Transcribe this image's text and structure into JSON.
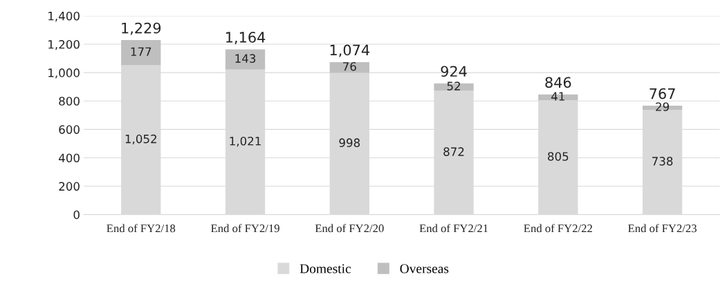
{
  "chart_data": {
    "type": "bar",
    "stacked": true,
    "categories": [
      "End of FY2/18",
      "End of FY2/19",
      "End of FY2/20",
      "End of FY2/21",
      "End of FY2/22",
      "End of FY2/23"
    ],
    "series": [
      {
        "name": "Domestic",
        "color": "#d9d9d9",
        "values": [
          1052,
          1021,
          998,
          872,
          805,
          738
        ],
        "value_labels": [
          "1,052",
          "1,021",
          "998",
          "872",
          "805",
          "738"
        ]
      },
      {
        "name": "Overseas",
        "color": "#bfbfbf",
        "values": [
          177,
          143,
          76,
          52,
          41,
          29
        ],
        "value_labels": [
          "177",
          "143",
          "76",
          "52",
          "41",
          "29"
        ]
      }
    ],
    "totals": [
      "1,229",
      "1,164",
      "1,074",
      "924",
      "846",
      "767"
    ],
    "ylim": [
      0,
      1400
    ],
    "yticks": [
      {
        "value": 0,
        "label": "0"
      },
      {
        "value": 200,
        "label": "200"
      },
      {
        "value": 400,
        "label": "400"
      },
      {
        "value": 600,
        "label": "600"
      },
      {
        "value": 800,
        "label": "800"
      },
      {
        "value": 1000,
        "label": "1,000"
      },
      {
        "value": 1200,
        "label": "1,200"
      },
      {
        "value": 1400,
        "label": "1,400"
      }
    ],
    "grid": "y",
    "legend": "bottom"
  }
}
